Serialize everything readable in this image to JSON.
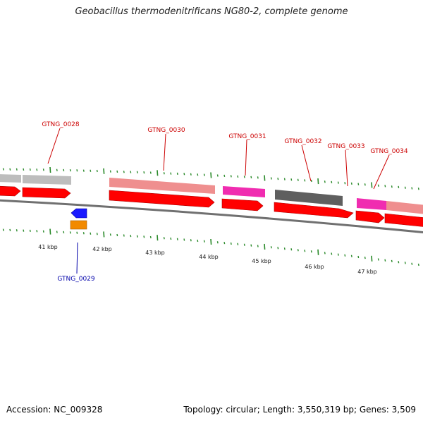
{
  "title": "Geobacillus thermodenitrificans NG80-2, complete genome",
  "footer": {
    "accession": "Accession: NC_009328",
    "summary": "Topology: circular; Length: 3,550,319 bp; Genes: 3,509"
  },
  "colors": {
    "cds_forward": "#ff0000",
    "cds_reverse": "#1a1aff",
    "label_forward": "#cc0000",
    "label_reverse": "#0000aa",
    "gc_skew": "#2a8a2a",
    "backbone": "#707070",
    "feature_gray": "#bdbdbd",
    "feature_salmon": "#ef8f8f",
    "feature_magenta": "#f02cb0",
    "feature_dark": "#5f5f5f",
    "feature_orange": "#f28a00"
  },
  "axis": {
    "ticks": [
      "41 kbp",
      "42 kbp",
      "43 kbp",
      "44 kbp",
      "45 kbp",
      "46 kbp",
      "47 kbp"
    ]
  },
  "genes": [
    {
      "name": "GTNG_0028",
      "strand": "forward"
    },
    {
      "name": "GTNG_0029",
      "strand": "reverse"
    },
    {
      "name": "GTNG_0030",
      "strand": "forward"
    },
    {
      "name": "GTNG_0031",
      "strand": "forward"
    },
    {
      "name": "GTNG_0032",
      "strand": "forward"
    },
    {
      "name": "GTNG_0033",
      "strand": "forward"
    },
    {
      "name": "GTNG_0034",
      "strand": "forward"
    }
  ]
}
